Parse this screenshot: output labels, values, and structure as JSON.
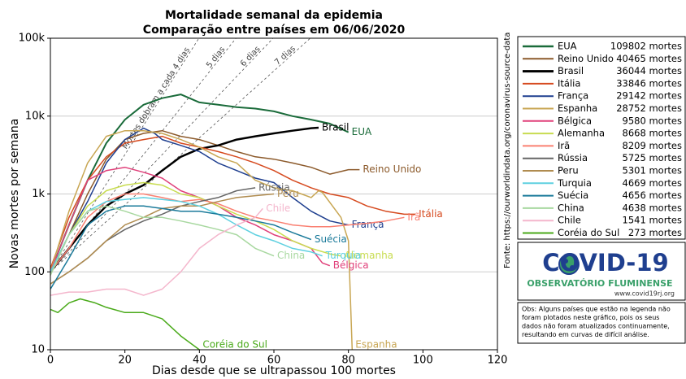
{
  "chart_data": {
    "type": "line",
    "title": "Mortalidade semanal da epidemia",
    "subtitle": "Comparação entre países em 06/06/2020",
    "xlabel": "Dias desde que se ultrapassou 100 mortes",
    "ylabel": "Novas mortes por semana",
    "xlim": [
      0,
      120
    ],
    "xticks": [
      0,
      20,
      40,
      60,
      80,
      100,
      120
    ],
    "ylim": [
      10,
      100000
    ],
    "ylog": true,
    "yticks": [
      10,
      100,
      {
        "value": 1000,
        "label": "1k"
      },
      {
        "value": 10000,
        "label": "10k"
      },
      {
        "value": 100000,
        "label": "100k"
      }
    ],
    "grid": true,
    "doubling_base": 100,
    "doubling_lines": [
      {
        "days": 4,
        "label": "Mortes dobram a cada 4 dias"
      },
      {
        "days": 5,
        "label": "5 dias"
      },
      {
        "days": 6,
        "label": "6 dias"
      },
      {
        "days": 7,
        "label": "7 dias"
      }
    ],
    "source": "Fonte: https://ourworldindata.org/coronavirus-source-data",
    "series": [
      {
        "name": "EUA",
        "legend_deaths": "109802 mortes",
        "color": "#1a6b3a",
        "width": 2,
        "x": [
          0,
          5,
          10,
          15,
          20,
          25,
          30,
          35,
          40,
          45,
          50,
          55,
          60,
          65,
          70,
          75,
          80
        ],
        "values": [
          100,
          400,
          1500,
          4500,
          9000,
          14000,
          17000,
          19000,
          15000,
          14000,
          13000,
          12500,
          11500,
          10000,
          9000,
          8000,
          6200
        ]
      },
      {
        "name": "Reino Unido",
        "legend_deaths": "40465 mortes",
        "color": "#8c5a2b",
        "width": 1.5,
        "x": [
          0,
          5,
          10,
          15,
          20,
          25,
          30,
          35,
          40,
          45,
          50,
          55,
          60,
          65,
          70,
          75,
          80,
          83
        ],
        "values": [
          100,
          300,
          1000,
          2800,
          5000,
          6000,
          6500,
          5500,
          5000,
          4200,
          3500,
          3000,
          2800,
          2500,
          2200,
          1800,
          2050,
          2050
        ]
      },
      {
        "name": "Brasil",
        "legend_deaths": "36044 mortes",
        "color": "#000000",
        "width": 2.5,
        "x": [
          0,
          5,
          10,
          15,
          20,
          25,
          30,
          35,
          40,
          45,
          50,
          55,
          60,
          65,
          70,
          72
        ],
        "values": [
          100,
          200,
          400,
          700,
          1000,
          1300,
          2000,
          3000,
          3800,
          4200,
          5000,
          5500,
          6000,
          6500,
          7000,
          7100
        ]
      },
      {
        "name": "Itália",
        "legend_deaths": "33846 mortes",
        "color": "#d64a1f",
        "width": 1.5,
        "x": [
          0,
          5,
          10,
          15,
          20,
          25,
          30,
          35,
          40,
          45,
          50,
          55,
          60,
          65,
          70,
          75,
          80,
          85,
          90,
          95,
          98
        ],
        "values": [
          110,
          500,
          1500,
          3000,
          4500,
          5000,
          5500,
          4500,
          4000,
          3500,
          3000,
          2500,
          2000,
          1500,
          1200,
          1000,
          900,
          700,
          600,
          550,
          550
        ]
      },
      {
        "name": "França",
        "legend_deaths": "29142 mortes",
        "color": "#1f3f8f",
        "width": 1.5,
        "x": [
          0,
          5,
          10,
          15,
          20,
          25,
          28,
          30,
          35,
          40,
          45,
          50,
          55,
          60,
          65,
          70,
          75,
          80
        ],
        "values": [
          100,
          300,
          800,
          2500,
          5000,
          7000,
          6000,
          5000,
          4200,
          3500,
          2500,
          2000,
          1600,
          1400,
          900,
          600,
          450,
          400
        ]
      },
      {
        "name": "Espanha",
        "legend_deaths": "28752 mortes",
        "color": "#c8a653",
        "width": 1.5,
        "x": [
          0,
          5,
          10,
          15,
          20,
          25,
          30,
          35,
          40,
          45,
          50,
          55,
          60,
          65,
          70,
          72,
          73,
          78,
          80,
          81
        ],
        "values": [
          100,
          600,
          2500,
          5500,
          6500,
          6500,
          6000,
          5000,
          4000,
          3000,
          2500,
          1500,
          1200,
          1100,
          900,
          1100,
          1050,
          500,
          250,
          10
        ]
      },
      {
        "name": "Bélgica",
        "legend_deaths": "9580 mortes",
        "color": "#e0407a",
        "width": 1.5,
        "x": [
          0,
          5,
          10,
          15,
          20,
          25,
          30,
          35,
          40,
          45,
          50,
          55,
          60,
          65,
          70,
          73,
          75
        ],
        "values": [
          100,
          400,
          1500,
          2000,
          2200,
          1900,
          1600,
          1100,
          900,
          700,
          500,
          400,
          300,
          250,
          200,
          130,
          120
        ]
      },
      {
        "name": "Alemanha",
        "legend_deaths": "8668 mortes",
        "color": "#c8dc50",
        "width": 1.5,
        "x": [
          0,
          5,
          10,
          15,
          20,
          25,
          30,
          35,
          40,
          45,
          50,
          55,
          60,
          65,
          70,
          75,
          78
        ],
        "values": [
          100,
          300,
          700,
          1100,
          1300,
          1400,
          1300,
          1000,
          900,
          700,
          550,
          450,
          350,
          250,
          200,
          170,
          160
        ]
      },
      {
        "name": "Irã",
        "legend_deaths": "8209 mortes",
        "color": "#fa8072",
        "width": 1.5,
        "x": [
          0,
          5,
          10,
          15,
          20,
          25,
          30,
          35,
          40,
          45,
          50,
          55,
          60,
          65,
          70,
          75,
          80,
          85,
          90,
          95
        ],
        "values": [
          100,
          200,
          500,
          800,
          1000,
          1000,
          900,
          800,
          850,
          750,
          600,
          500,
          450,
          400,
          380,
          380,
          400,
          420,
          450,
          500
        ]
      },
      {
        "name": "Rússia",
        "legend_deaths": "5725 mortes",
        "color": "#666666",
        "width": 1.5,
        "x": [
          0,
          5,
          10,
          15,
          20,
          25,
          30,
          35,
          40,
          45,
          50,
          55
        ],
        "values": [
          70,
          100,
          150,
          250,
          350,
          450,
          550,
          700,
          800,
          900,
          1100,
          1200
        ]
      },
      {
        "name": "Peru",
        "legend_deaths": "5301 mortes",
        "color": "#b08c50",
        "width": 1.5,
        "x": [
          0,
          5,
          10,
          15,
          20,
          25,
          30,
          35,
          40,
          45,
          50,
          55,
          60
        ],
        "values": [
          70,
          100,
          150,
          250,
          400,
          500,
          650,
          700,
          700,
          800,
          900,
          950,
          1000
        ]
      },
      {
        "name": "Turquia",
        "legend_deaths": "4669 mortes",
        "color": "#5ed0e0",
        "width": 1.5,
        "x": [
          0,
          5,
          10,
          15,
          20,
          25,
          30,
          35,
          40,
          45,
          50,
          55,
          60,
          65,
          70,
          73
        ],
        "values": [
          100,
          300,
          600,
          800,
          850,
          900,
          850,
          800,
          700,
          550,
          400,
          300,
          250,
          200,
          180,
          160
        ]
      },
      {
        "name": "Suécia",
        "legend_deaths": "4656 mortes",
        "color": "#1a7a9a",
        "width": 1.5,
        "x": [
          0,
          5,
          10,
          15,
          20,
          25,
          30,
          35,
          40,
          45,
          50,
          55,
          60,
          65,
          70
        ],
        "values": [
          60,
          150,
          400,
          600,
          700,
          700,
          650,
          600,
          600,
          550,
          500,
          450,
          400,
          320,
          260
        ]
      },
      {
        "name": "China",
        "legend_deaths": "4638 mortes",
        "color": "#a8d8a0",
        "width": 1.5,
        "x": [
          0,
          5,
          10,
          15,
          20,
          25,
          30,
          35,
          40,
          45,
          50,
          55,
          60
        ],
        "values": [
          90,
          300,
          600,
          700,
          600,
          500,
          500,
          450,
          400,
          350,
          300,
          200,
          160
        ]
      },
      {
        "name": "Chile",
        "legend_deaths": "1541 mortes",
        "color": "#f4b6cc",
        "width": 1.5,
        "x": [
          0,
          5,
          10,
          15,
          20,
          25,
          30,
          35,
          40,
          45,
          50,
          55,
          57
        ],
        "values": [
          50,
          55,
          55,
          60,
          60,
          50,
          60,
          100,
          200,
          300,
          400,
          500,
          650
        ]
      },
      {
        "name": "Coréia do Sul",
        "legend_deaths": "273 mortes",
        "color": "#4aaa1a",
        "width": 1.5,
        "x": [
          0,
          2,
          5,
          8,
          12,
          15,
          20,
          25,
          30,
          35,
          40
        ],
        "values": [
          33,
          30,
          40,
          45,
          40,
          35,
          30,
          30,
          25,
          15,
          10
        ]
      }
    ]
  },
  "logo": {
    "title": "COVID-19",
    "subtitle": "OBSERVATÓRIO FLUMINENSE",
    "url": "www.covid19rj.org"
  },
  "note": [
    "Obs: Alguns países que estão na legenda não",
    "foram plotados neste gráfico, pois os seus",
    "dados não foram atualizados continuamente,",
    "resultando em curvas de difícil análise."
  ]
}
